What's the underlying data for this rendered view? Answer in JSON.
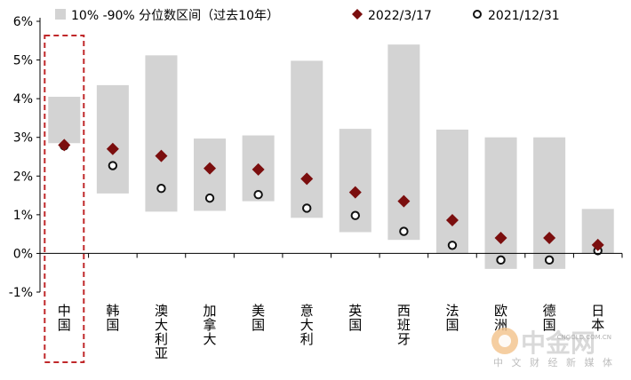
{
  "chart_data": {
    "type": "range-bar-with-markers",
    "categories": [
      "中国",
      "韩国",
      "澳大利亚",
      "加拿大",
      "美国",
      "意大利",
      "英国",
      "西班牙",
      "法国",
      "欧洲",
      "德国",
      "日本"
    ],
    "ylim": [
      -1,
      6
    ],
    "yticks": [
      "-1%",
      "0%",
      "1%",
      "2%",
      "3%",
      "4%",
      "5%",
      "6%"
    ],
    "highlight_category": "中国",
    "series": [
      {
        "name": "10% -90% 分位数区间（过去10年）",
        "kind": "range",
        "color": "#d3d3d3",
        "low": [
          2.85,
          1.55,
          1.08,
          1.1,
          1.35,
          0.92,
          0.55,
          0.35,
          0.0,
          -0.4,
          -0.4,
          0.0
        ],
        "high": [
          4.05,
          4.35,
          5.12,
          2.97,
          3.05,
          4.98,
          3.22,
          5.4,
          3.2,
          3.0,
          3.0,
          1.15
        ]
      },
      {
        "name": "2022/3/17",
        "kind": "marker",
        "marker": "diamond",
        "color": "#7b0e0e",
        "values": [
          2.8,
          2.7,
          2.52,
          2.2,
          2.17,
          1.93,
          1.58,
          1.35,
          0.86,
          0.4,
          0.4,
          0.22
        ]
      },
      {
        "name": "2021/12/31",
        "kind": "marker",
        "marker": "circle",
        "color": "#111111",
        "values": [
          2.78,
          2.27,
          1.68,
          1.43,
          1.52,
          1.17,
          0.98,
          0.57,
          0.21,
          -0.17,
          -0.17,
          0.07
        ]
      }
    ]
  },
  "watermark": {
    "brand": "中金网",
    "url": "CNGOLD.COM.CN",
    "subtitle": "中 文 财 经 新 媒 体"
  }
}
